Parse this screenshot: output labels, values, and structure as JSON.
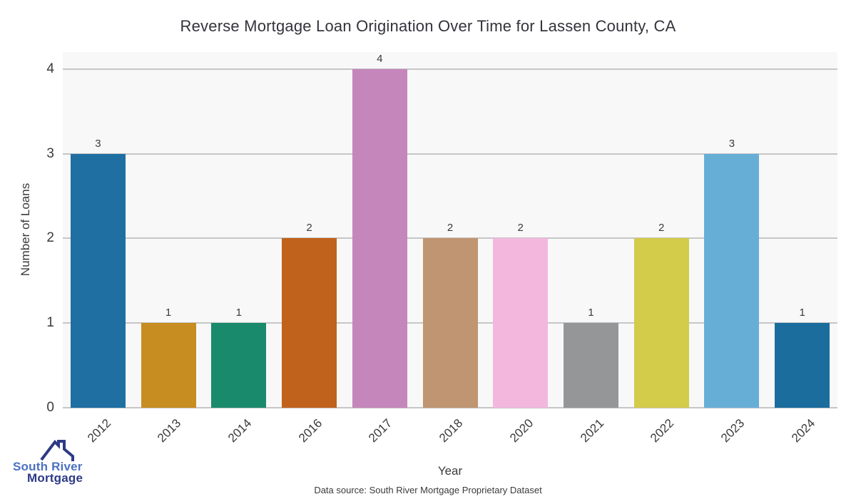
{
  "title": "Reverse Mortgage Loan Origination Over Time for Lassen County, CA",
  "chart_data": {
    "type": "bar",
    "title": "Reverse Mortgage Loan Origination Over Time for Lassen County, CA",
    "categories": [
      "2012",
      "2013",
      "2014",
      "2016",
      "2017",
      "2018",
      "2020",
      "2021",
      "2022",
      "2023",
      "2024"
    ],
    "values": [
      3,
      1,
      1,
      2,
      4,
      2,
      2,
      1,
      2,
      3,
      1
    ],
    "bar_colors": [
      "#1f6fa2",
      "#c78d21",
      "#1a8a6c",
      "#c0621c",
      "#c586bc",
      "#c09572",
      "#f3b7de",
      "#949698",
      "#d3cb4a",
      "#67aed7",
      "#1b6d9e"
    ],
    "xlabel": "Year",
    "ylabel": "Number of Loans",
    "ylim": [
      0,
      4.2
    ],
    "yticks": [
      0,
      1,
      2,
      3,
      4
    ],
    "grid": "horizontal",
    "legend": "none",
    "plot_background": "#f8f8f8",
    "gridline_color": "#c6c6c6",
    "value_labels_shown": true
  },
  "footer": {
    "data_source": "Data source: South River Mortgage Proprietary Dataset"
  },
  "logo": {
    "line1": "South River",
    "line2": "Mortgage",
    "line1_color": "#4c70c0",
    "line2_color": "#2d3a85",
    "roof_color": "#2d3a85"
  }
}
